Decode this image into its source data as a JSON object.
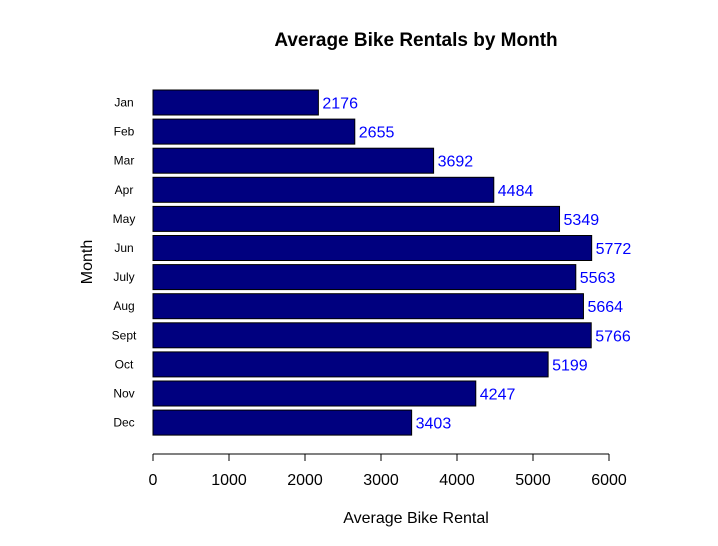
{
  "chart_data": {
    "type": "bar",
    "orientation": "horizontal",
    "title": "Average Bike Rentals by Month",
    "xlabel": "Average Bike Rental",
    "ylabel": "Month",
    "categories": [
      "Jan",
      "Feb",
      "Mar",
      "Apr",
      "May",
      "Jun",
      "July",
      "Aug",
      "Sept",
      "Oct",
      "Nov",
      "Dec"
    ],
    "values": [
      2176,
      2655,
      3692,
      4484,
      5349,
      5772,
      5563,
      5664,
      5766,
      5199,
      4247,
      3403
    ],
    "data_labels": [
      "2176",
      "2655",
      "3692",
      "4484",
      "5349",
      "5772",
      "5563",
      "5664",
      "5766",
      "5199",
      "4247",
      "3403"
    ],
    "xlim": [
      0,
      6000
    ],
    "x_ticks": [
      0,
      1000,
      2000,
      3000,
      4000,
      5000,
      6000
    ],
    "x_tick_labels": [
      "0",
      "1000",
      "2000",
      "3000",
      "4000",
      "5000",
      "6000"
    ],
    "grid": false,
    "legend": "none",
    "colors": {
      "bar_fill": "#00007f",
      "bar_stroke": "#000000",
      "data_label": "#0000ff",
      "axis": "#000000"
    }
  }
}
